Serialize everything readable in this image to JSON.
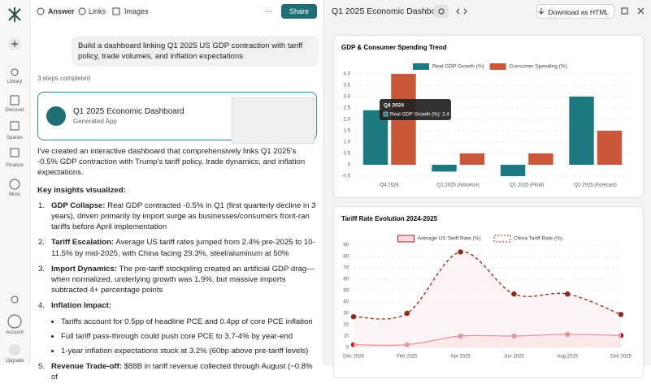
{
  "sidebar": {
    "items": [
      "Library",
      "Discover",
      "Spaces",
      "Finance",
      "More"
    ],
    "account": "Account",
    "upgrade": "Upgrade"
  },
  "tabs": [
    "Answer",
    "Links",
    "Images"
  ],
  "more": "···",
  "share": "Share",
  "query": "Build a dashboard linking Q1 2025 US GDP contraction with tariff policy, trade volumes, and inflation expectations",
  "steps": "3 steps completed",
  "app_card": {
    "title": "Q1 2025 Economic Dashboard",
    "subtitle": "Generated App"
  },
  "answer": {
    "intro": "I've created an interactive dashboard that comprehensively links Q1 2025's -0.5% GDP contraction with Trump's tariff policy, trade dynamics, and inflation expectations.",
    "heading": "Key insights visualized:",
    "items": [
      {
        "marker": "1.",
        "title": "GDP Collapse:",
        "text": "Real GDP contracted -0.5% in Q1 (first quarterly decline in 3 years), driven primarily by import surge as businesses/consumers front-ran tariffs before April implementation"
      },
      {
        "marker": "2.",
        "title": "Tariff Escalation:",
        "text": "Average US tariff rates jumped from 2.4% pre-2025 to 10-11.5% by mid-2025, with China facing 29.3%, steel/aluminum at 50%"
      },
      {
        "marker": "3.",
        "title": "Import Dynamics:",
        "text": "The pre-tariff stockpiling created an artificial GDP drag—when normalized, underlying growth was 1.9%, but massive imports subtracted 4+ percentage points"
      },
      {
        "marker": "4.",
        "title": "Inflation Impact:",
        "text": "",
        "subitems": [
          "Tariffs account for 0.5pp of headline PCE and 0.4pp of core PCE inflation",
          "Full tariff pass-through could push core PCE to 3.7-4% by year-end",
          "1-year inflation expectations stuck at 3.2% (60bp above pre-tariff levels)"
        ]
      },
      {
        "marker": "5.",
        "title": "Revenue Trade-off:",
        "text": "$88B in tariff revenue collected through August (~0.8% of"
      }
    ]
  },
  "panel": {
    "title": "Q1 2025 Economic Dashboard",
    "download": "Download as HTML"
  },
  "chart_data": [
    {
      "type": "bar",
      "title": "GDP & Consumer Spending Trend",
      "categories": [
        "Q4 2024",
        "Q1 2025 (Advance)",
        "Q1 2025 (Final)",
        "Q2 2025 (Forecast)"
      ],
      "series": [
        {
          "name": "Real GDP Growth (%)",
          "color": "#1e7880",
          "values": [
            2.4,
            -0.3,
            -0.5,
            3.0
          ]
        },
        {
          "name": "Consumer Spending (%)",
          "color": "#c9583a",
          "values": [
            4.0,
            0.5,
            0.5,
            1.5
          ]
        }
      ],
      "ylim": [
        -0.5,
        4.0
      ],
      "yticks": [
        -0.5,
        0,
        0.5,
        {
          "value": 1,
          "label": "1.0"
        },
        1.5,
        {
          "value": 2,
          "label": "2.0"
        },
        2.5,
        {
          "value": 3,
          "label": "3.0"
        },
        3.5,
        {
          "value": 4,
          "label": "4.0"
        }
      ],
      "grid": true,
      "legend": "top",
      "tooltip": {
        "title": "Q4 2024",
        "text": "Real GDP Growth (%): 2.4"
      }
    },
    {
      "type": "line",
      "title": "Tariff Rate Evolution 2024-2025",
      "categories": [
        "Dec 2024",
        "Feb 2025",
        "Apr 2025",
        "Jun 2025",
        "Aug 2025",
        "Dec 2025"
      ],
      "series": [
        {
          "name": "Average US Tariff Rate (%)",
          "color": "#b5172b",
          "dashed": false,
          "values": [
            2.4,
            2.4,
            10,
            10,
            11.5,
            10.5
          ]
        },
        {
          "name": "China Tariff Rate (%)",
          "color": "#8b2a1e",
          "dashed": true,
          "values": [
            27,
            30,
            84,
            47,
            47,
            29
          ]
        }
      ],
      "ylim": [
        0,
        90
      ],
      "yticks": [
        0,
        10,
        20,
        30,
        40,
        50,
        60,
        70,
        80,
        90
      ],
      "grid": true,
      "legend": "top"
    }
  ]
}
